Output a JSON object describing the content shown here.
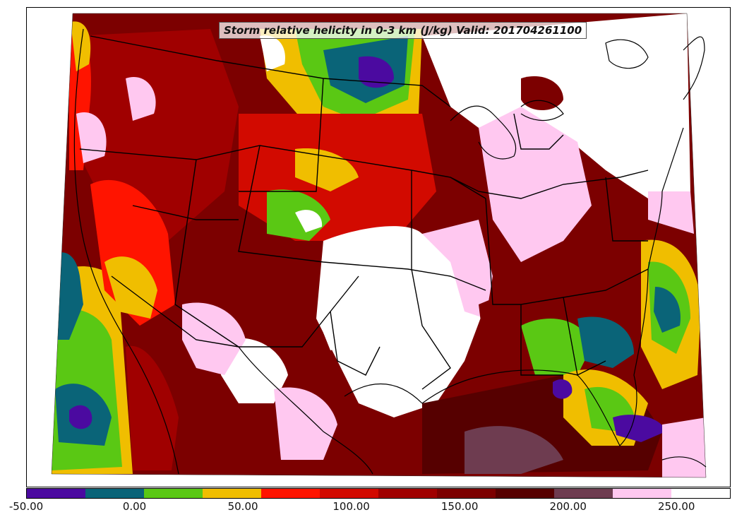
{
  "title": "Storm relative helicity in 0-3 km (J/kg) Valid: 201704261100",
  "colorbar": {
    "colors": [
      "#4b0aa0",
      "#0a6478",
      "#5ac814",
      "#f0be00",
      "#ff1400",
      "#d20a00",
      "#a00000",
      "#7c0000",
      "#560000",
      "#6e3c50",
      "#ffc8f0",
      "#ffffff"
    ],
    "tick_labels": [
      "-50.00",
      "0.00",
      "50.00",
      "100.00",
      "150.00",
      "200.00",
      "250.00"
    ],
    "tick_values": [
      -50,
      0,
      50,
      100,
      150,
      200,
      250
    ],
    "range": [
      -50,
      275
    ]
  }
}
